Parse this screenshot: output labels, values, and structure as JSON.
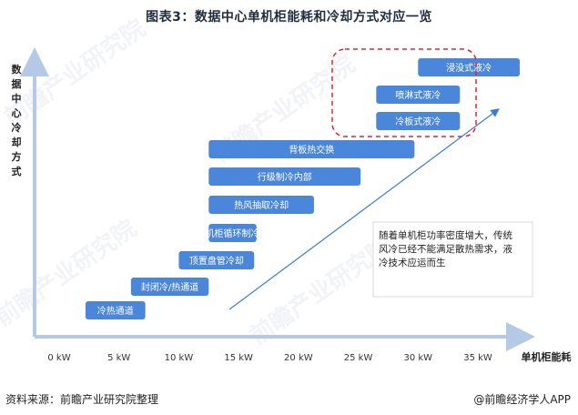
{
  "title": "图表3：数据中心单机柜能耗和冷却方式对应一览",
  "chart_data": {
    "type": "bar",
    "title": "图表3：数据中心单机柜能耗和冷却方式对应一览",
    "ylabel": "数据中心冷却方式",
    "xlabel": "单机柜能耗",
    "x_unit": "kW",
    "xlim": [
      0,
      40
    ],
    "x_ticks": [
      "0 kW",
      "5 kW",
      "10 kW",
      "15 kW",
      "20 kW",
      "25 kW",
      "30 kW",
      "35 kW"
    ],
    "x_tick_values": [
      0,
      5,
      10,
      15,
      20,
      25,
      30,
      35
    ],
    "bars": [
      {
        "label": "冷热通道",
        "start": 2.2,
        "end": 7.2
      },
      {
        "label": "封闭冷/热通道",
        "start": 6,
        "end": 12.5
      },
      {
        "label": "顶置盘管冷却",
        "start": 10,
        "end": 16.3
      },
      {
        "label": "机柜循环制冷",
        "start": 12.5,
        "end": 16.5
      },
      {
        "label": "热风抽取冷却",
        "start": 12.5,
        "end": 21.3
      },
      {
        "label": "行级制冷内部",
        "start": 12.5,
        "end": 25.2
      },
      {
        "label": "背板热交换",
        "start": 12.5,
        "end": 29.7
      },
      {
        "label": "冷板式液冷",
        "start": 26.5,
        "end": 33.5
      },
      {
        "label": "喷淋式液冷",
        "start": 26.5,
        "end": 33.5
      },
      {
        "label": "浸没式液冷",
        "start": 30,
        "end": 38.5
      }
    ],
    "highlight_group": [
      "冷板式液冷",
      "喷淋式液冷",
      "浸没式液冷"
    ],
    "annotation": "随着单机柜功率密度增大，传统风冷已经不能满足散热需求，液冷技术应运而生",
    "grid": false
  },
  "footer": {
    "source": "资料来源：前瞻产业研究院整理",
    "brand": "@前瞻经济学人APP"
  },
  "watermark_text": "前瞻产业研究院",
  "colors": {
    "bar": "#4a86d9",
    "axis": "#b3c9e6",
    "highlight": "#e8202a",
    "trend": "#3a7bd5",
    "annotation_box": "#d9d9d9"
  }
}
